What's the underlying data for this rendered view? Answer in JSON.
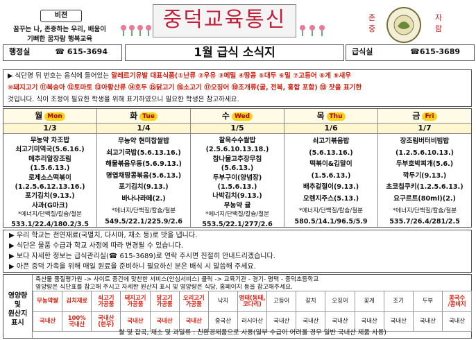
{
  "header": {
    "vision": "비젼",
    "motto": [
      "꿈꾸는 나, 존중하는 우리, 배움이",
      "기뻐한 꿈자람 행복교육"
    ],
    "title": "중덕교육통신",
    "school_left": "존\n중",
    "school_right": "자\n람",
    "office_label": "행정실",
    "office_phone": "☎ 615-3694",
    "month_title": "1월 급식 소식지",
    "meal_label": "급식실",
    "meal_phone": "☎615-3689"
  },
  "notice": {
    "line1_pre": "식단명 뒤 번호는 음식에 들어있는 ",
    "line1_allergen": "알레르기유발 대표식품(①난류 ②우유 ③메밀 ④땅콩 ⑤대두 ⑥밀 ⑦고등어 ⑧게 ⑨새우",
    "line2_allergen": "⑩돼지고기 ⑪복숭아 ⑫토마토 ⑬아황산류 ⑭호두 ⑮닭고기 ⑯소고기 ⑰오징어 ⑱조개류(굴, 전복, 홍합 포함) ⑲ 잣을 표기한",
    "line3": "것입니다. 식이 조정이 필요한 학생을 위해 표기하였으니 필요한 학생은 참고하세요."
  },
  "menu": [
    {
      "day": "월",
      "en": "Mon",
      "date": "1/3",
      "items": [
        "무농약 차조밥",
        "쇠고기미역국(5.6.16.)",
        "메추리알장조림",
        "(1.5.6.13.)",
        "로제소스떡볶이",
        "(1.2.5.6.12.13.16.)",
        "포기김치(9.13.)",
        "사과(G마크)"
      ],
      "note": "*에너지/단백질/칼슘/철분",
      "nutri": "533.1/22.4/180.2/3.5"
    },
    {
      "day": "화",
      "en": "Tue",
      "date": "1/4",
      "items": [
        "무농약 현미찹쌀밥",
        "쇠고기국밥(5.6.13.16.)",
        "해물볶음우동(5.6.9.13.)",
        "명엽채땅콩볶음(5.6.13.)",
        "포기김치(9.13.)",
        "바나나라떼(2.)"
      ],
      "note": "*에너지/단백질/칼슘/철분",
      "nutri": "549.5/22.1/225.9/2.6"
    },
    {
      "day": "수",
      "en": "Wed",
      "date": "1/5",
      "items": [
        "찰옥수수쌀밥",
        "(2.5.6.10.13.18.)",
        "참나물고추장무침",
        "(5.6.13.)",
        "두부구이(양념장)",
        "(1.5.6.13.)",
        "나박김치(9.13.)",
        "무농약 귤"
      ],
      "note": "*에너지/단백질/칼슘/철분",
      "nutri": "553.5/22.1/277/2.6"
    },
    {
      "day": "목",
      "en": "Thu",
      "date": "1/6",
      "items": [
        "쇠고기볶음밥",
        "(5.6.13.16.)",
        "떡볶이&김말이",
        "(1.5.6.13.)",
        "배추겉절이(9.13.)",
        "오렌지주스(5.13.)"
      ],
      "note": "*에너지/단백질/칼슘/철분",
      "nutri": "580.5/14.1/96.5/5.9"
    },
    {
      "day": "금",
      "en": "Fri",
      "date": "1/7",
      "items": [
        "장조림버터비빔밥",
        "(1.2.5.6.10.13.)",
        "두부호박찌개(5.6.)",
        "깍두기(9.13.)",
        "초코칩쿠키(1.2.5.6.13.)",
        "요구르트(80ml)(2.)"
      ],
      "note": "*에너지/단백질/칼슘/철분",
      "nutri": "535.7/26.4/281/2.5"
    }
  ],
  "notes": [
    "우리 학교는 천연재료(국멸치, 다시마, 채소 등)로 맛을 냅니다.",
    "식단은 물품 수급과 학교 사정에 따라 변경될 수 있습니다.",
    "보다 자세한 정보는 급식관리실(☎ 615-3689)로 연락 주시면 친절히 안내드리겠습니다.",
    "아픈 중덕 가족을 위해 매일 원료을 준비하니 필요하신 분은 배식 시 말씀해 주세요."
  ],
  "origin": {
    "label": "영양량\n및\n원산지\n표시",
    "desc1": "축산물 품질평가원 -> 사이트 중간에 맞찬한 서비스(안심서비스) 클릭 -> 교육기관 - 경기- 평택 - 중덕초등학교",
    "desc2": "영양량은 식단표를 참고해 주시고 자세한 원산지 표시 및 영양량은 식당, 홈페이지 등을 참고해주세요.",
    "items": [
      "무농약쌀",
      "김치재료",
      "쇠고기\n가공품",
      "돼지고기\n가공품",
      "닭고기\n가공품",
      "오리고기\n가공품",
      "낙지",
      "명태(동태,\n코다리)",
      "고등어",
      "갈치",
      "오징어",
      "꽃게",
      "조기",
      "두부",
      "콩국수\n/콩비지"
    ],
    "origins": [
      "국내산",
      "100%\n국내산",
      "국내산\n(한우)",
      "국내산",
      "국내산",
      "국내산",
      "중국산",
      "러시아산",
      "국내산",
      "국내산",
      "국내산",
      "국내산",
      "국내산",
      "국내산",
      "국내산"
    ],
    "footer": "쌀 및 잡곡, 채소 및 과일류 : 친환경제품으로 사용(일부 수급이 어려울 경우 일반 국내산 제품 사용)"
  }
}
